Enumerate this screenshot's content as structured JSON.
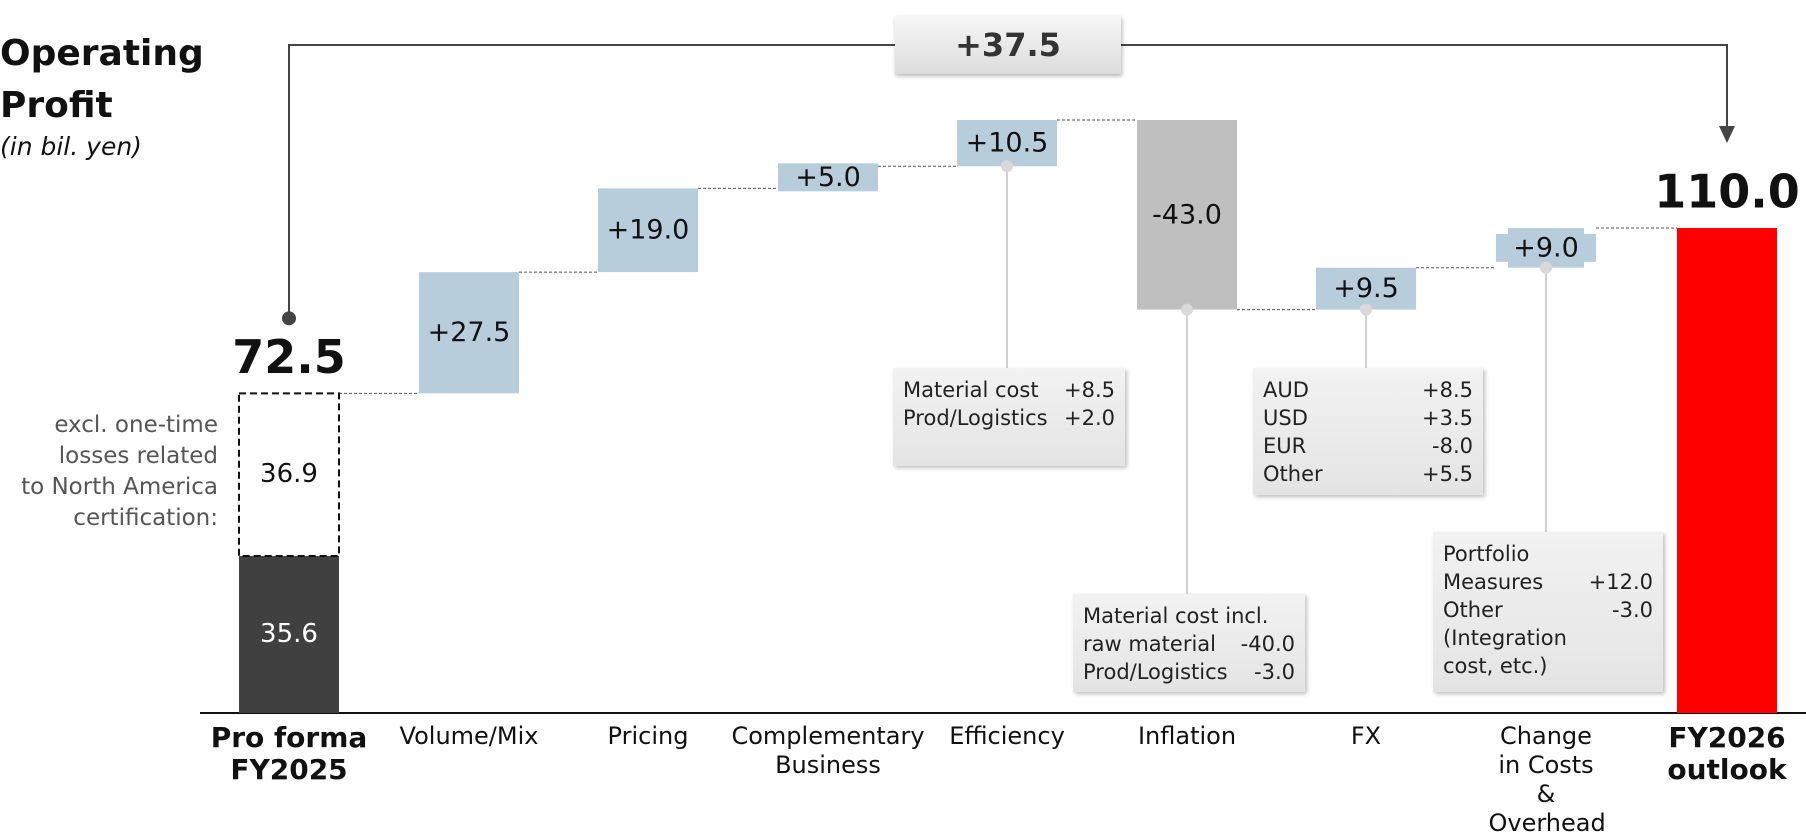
{
  "chart_data": {
    "type": "waterfall",
    "title": "Operating Profit",
    "subtitle": "(in bil. yen)",
    "categories": [
      "Pro forma FY2025",
      "Volume/Mix",
      "Pricing",
      "Complementary Business",
      "Efficiency",
      "Inflation",
      "FX",
      "Change in Costs & Overhead",
      "FY2026 outlook"
    ],
    "measures": [
      "total",
      "relative",
      "relative",
      "relative",
      "relative",
      "relative",
      "relative",
      "relative",
      "total"
    ],
    "values": [
      72.5,
      27.5,
      19.0,
      5.0,
      10.5,
      -43.0,
      9.5,
      9.0,
      110.0
    ],
    "value_labels": [
      "72.5",
      "+27.5",
      "+19.0",
      "+5.0",
      "+10.5",
      "-43.0",
      "+9.5",
      "+9.0",
      "110.0"
    ],
    "colors": {
      "start": "#404040",
      "increase": "#b8cddb",
      "decrease": "#bfbfbf",
      "end": "#ff0000"
    },
    "start_breakdown": {
      "values": [
        35.6,
        36.9
      ],
      "note": [
        "excl. one-time",
        "losses related",
        "to North America",
        "certification:"
      ]
    },
    "total_change": {
      "value": 37.5,
      "label": "+37.5"
    },
    "callouts": [
      {
        "rows": [
          [
            "Material cost",
            "+8.5"
          ],
          [
            "Prod/Logistics",
            "+2.0"
          ]
        ]
      },
      {
        "rows": [
          [
            "Material cost incl."
          ],
          [
            "raw material",
            "-40.0"
          ],
          [
            "Prod/Logistics",
            "-3.0"
          ]
        ]
      },
      {
        "rows": [
          [
            "AUD",
            "+8.5"
          ],
          [
            "USD",
            "+3.5"
          ],
          [
            "EUR",
            "-8.0"
          ],
          [
            "Other",
            "+5.5"
          ]
        ]
      },
      {
        "rows": [
          [
            "Portfolio"
          ],
          [
            "Measures",
            "+12.0"
          ],
          [
            "Other",
            "-3.0"
          ],
          [
            "(Integration"
          ],
          [
            "cost, etc.)"
          ]
        ]
      }
    ]
  }
}
